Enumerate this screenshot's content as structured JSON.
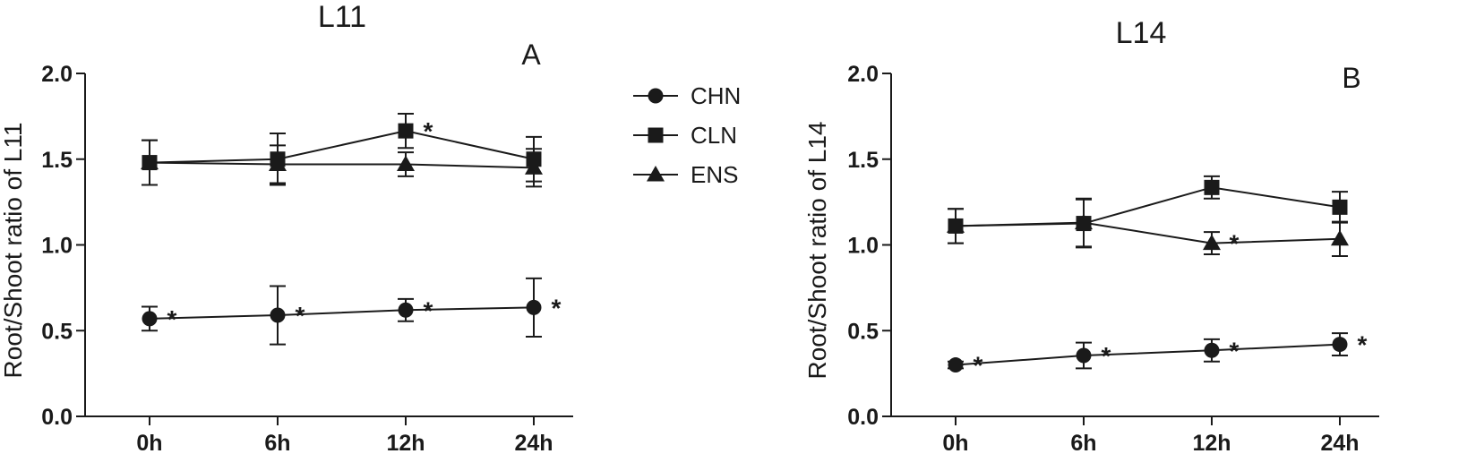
{
  "legend": {
    "entries": [
      {
        "name": "CHN",
        "marker": "circle"
      },
      {
        "name": "CLN",
        "marker": "square"
      },
      {
        "name": "ENS",
        "marker": "triangle"
      }
    ],
    "placement": "between-panels"
  },
  "chart_data": [
    {
      "type": "line",
      "title": "L11",
      "panel_letter": "A",
      "ylabel": "Root/Shoot  ratio of L11",
      "xlabel": "",
      "categories": [
        "0h",
        "6h",
        "12h",
        "24h"
      ],
      "ylim": [
        0,
        2
      ],
      "yticks": [
        "0.0",
        "0.5",
        "1.0",
        "1.5",
        "2.0"
      ],
      "grid": false,
      "series": [
        {
          "name": "CHN",
          "marker": "circle",
          "values": [
            0.57,
            0.59,
            0.62,
            0.635
          ],
          "errors": [
            0.07,
            0.17,
            0.065,
            0.17
          ],
          "annotations": [
            "*",
            "*",
            "*",
            "*"
          ]
        },
        {
          "name": "CLN",
          "marker": "square",
          "values": [
            1.48,
            1.5,
            1.665,
            1.5
          ],
          "errors": [
            0.13,
            0.15,
            0.1,
            0.13
          ],
          "annotations": [
            "",
            "",
            "*",
            ""
          ]
        },
        {
          "name": "ENS",
          "marker": "triangle",
          "values": [
            1.48,
            1.47,
            1.47,
            1.45
          ],
          "errors": [
            0.13,
            0.11,
            0.07,
            0.11
          ],
          "annotations": [
            "",
            "",
            "",
            ""
          ]
        }
      ]
    },
    {
      "type": "line",
      "title": "L14",
      "panel_letter": "B",
      "ylabel": "Root/Shoot  ratio of L14",
      "xlabel": "",
      "categories": [
        "0h",
        "6h",
        "12h",
        "24h"
      ],
      "ylim": [
        0,
        2
      ],
      "yticks": [
        "0.0",
        "0.5",
        "1.0",
        "1.5",
        "2.0"
      ],
      "grid": false,
      "series": [
        {
          "name": "CHN",
          "marker": "circle",
          "values": [
            0.3,
            0.355,
            0.385,
            0.42
          ],
          "errors": [
            0.02,
            0.075,
            0.065,
            0.065
          ],
          "annotations": [
            "*",
            "*",
            "*",
            "*"
          ]
        },
        {
          "name": "CLN",
          "marker": "square",
          "values": [
            1.11,
            1.125,
            1.335,
            1.22
          ],
          "errors": [
            0.1,
            0.14,
            0.065,
            0.09
          ],
          "annotations": [
            "",
            "",
            "",
            ""
          ]
        },
        {
          "name": "ENS",
          "marker": "triangle",
          "values": [
            1.11,
            1.13,
            1.01,
            1.035
          ],
          "errors": [
            0.1,
            0.14,
            0.065,
            0.1
          ],
          "annotations": [
            "",
            "",
            "*",
            ""
          ]
        }
      ]
    }
  ]
}
